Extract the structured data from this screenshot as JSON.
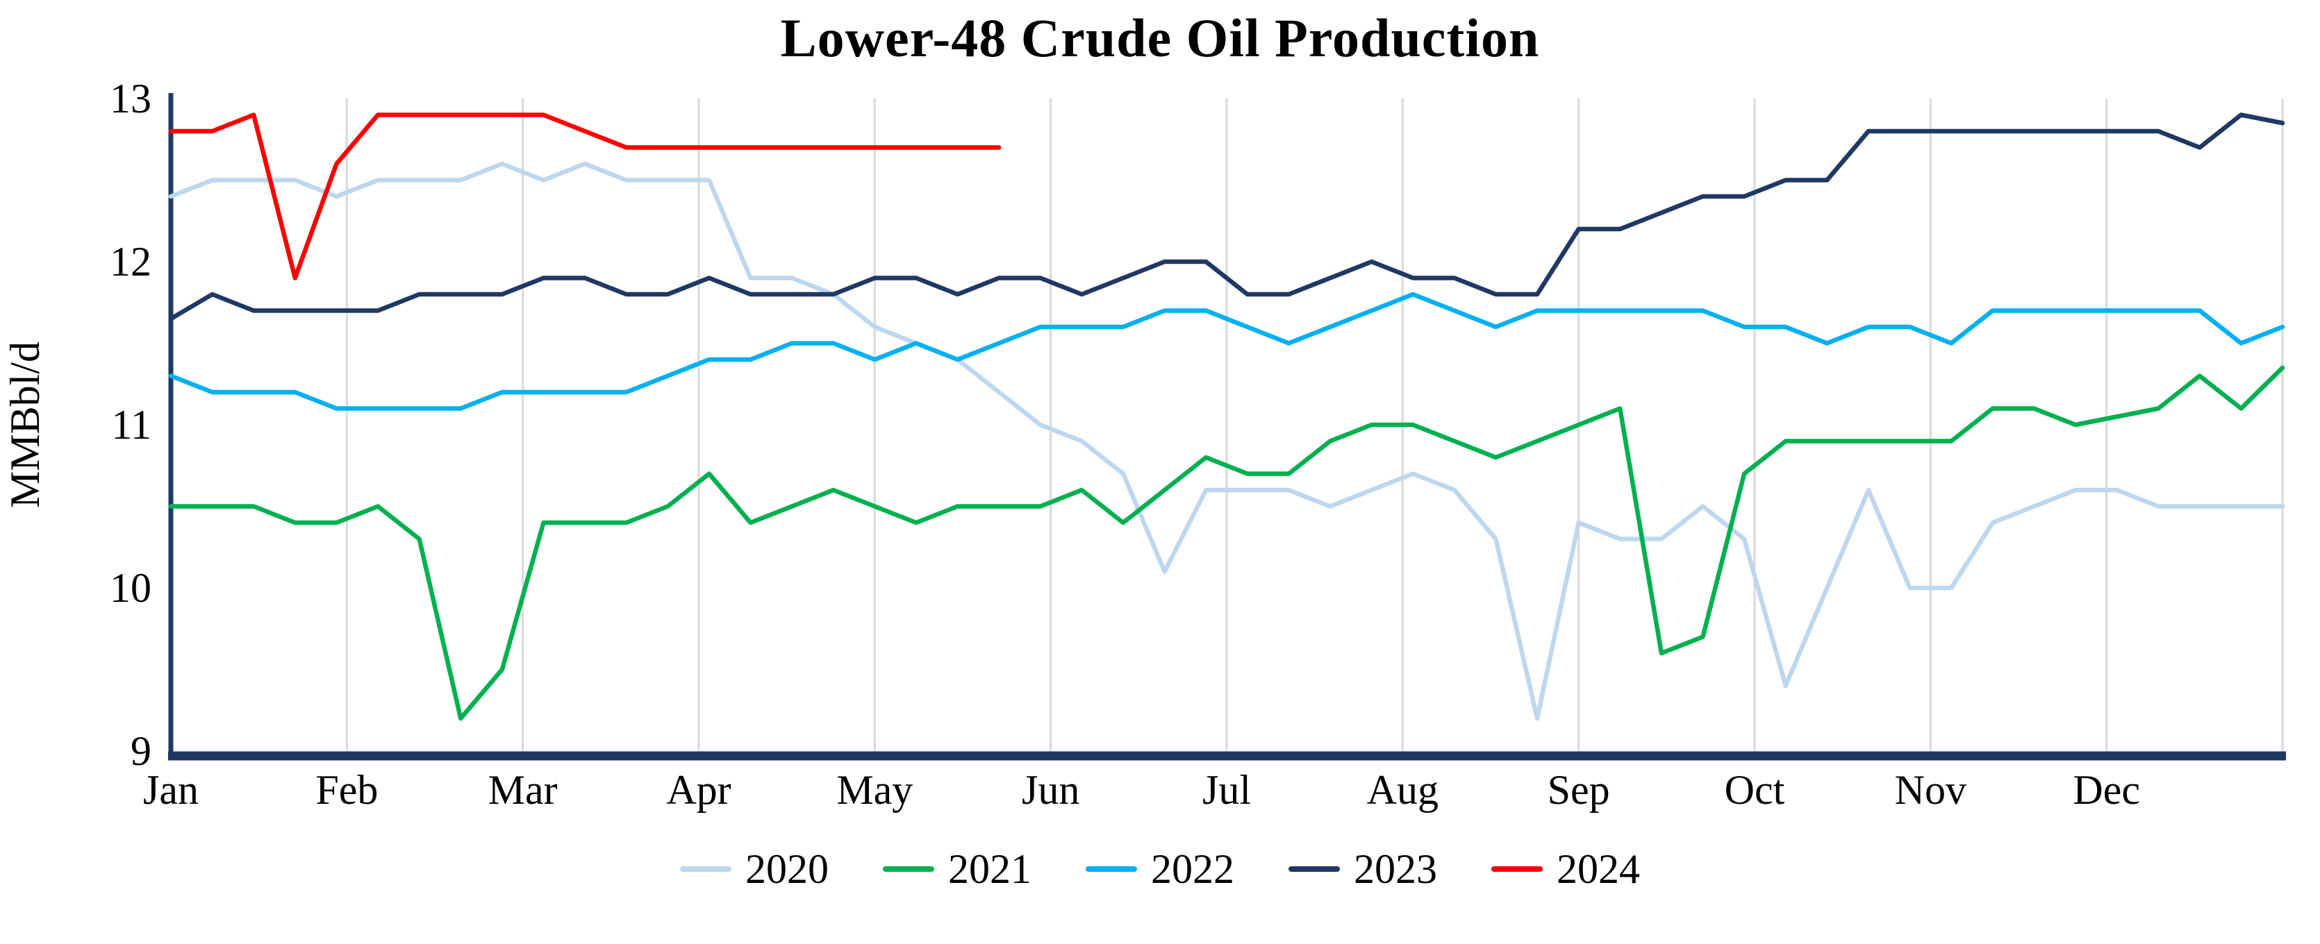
{
  "chart_data": {
    "type": "line",
    "title": "Lower-48 Crude Oil Production",
    "ylabel": "MMBbl/d",
    "xlabel": "",
    "ylim": [
      9,
      13
    ],
    "yticks": [
      9,
      10,
      11,
      12,
      13
    ],
    "x_tick_labels": [
      "Jan",
      "Feb",
      "Mar",
      "Apr",
      "May",
      "Jun",
      "Jul",
      "Aug",
      "Sep",
      "Oct",
      "Nov",
      "Dec"
    ],
    "x_unit": "weekly",
    "grid": "vertical-only",
    "grid_color": "#d9d9d9",
    "axis_color": "#1f3864",
    "legend_position": "bottom",
    "series": [
      {
        "name": "2020",
        "color": "#bdd7ee",
        "values": [
          12.4,
          12.5,
          12.5,
          12.5,
          12.4,
          12.5,
          12.5,
          12.5,
          12.6,
          12.5,
          12.6,
          12.5,
          12.5,
          12.5,
          11.9,
          11.9,
          11.8,
          11.6,
          11.5,
          11.4,
          11.2,
          11.0,
          10.9,
          10.7,
          10.1,
          10.6,
          10.6,
          10.6,
          10.5,
          10.6,
          10.7,
          10.6,
          10.3,
          9.2,
          10.4,
          10.3,
          10.3,
          10.5,
          10.3,
          9.4,
          10.0,
          10.6,
          10.0,
          10.0,
          10.4,
          10.5,
          10.6,
          10.6,
          10.5,
          10.5,
          10.5,
          10.5
        ]
      },
      {
        "name": "2021",
        "color": "#00b050",
        "values": [
          10.5,
          10.5,
          10.5,
          10.4,
          10.4,
          10.5,
          10.3,
          9.2,
          9.5,
          10.4,
          10.4,
          10.4,
          10.5,
          10.7,
          10.4,
          10.5,
          10.6,
          10.5,
          10.4,
          10.5,
          10.5,
          10.5,
          10.6,
          10.4,
          10.6,
          10.8,
          10.7,
          10.7,
          10.9,
          11.0,
          11.0,
          10.9,
          10.8,
          10.9,
          11.0,
          11.1,
          9.6,
          9.7,
          10.7,
          10.9,
          10.9,
          10.9,
          10.9,
          10.9,
          11.1,
          11.1,
          11.0,
          11.05,
          11.1,
          11.3,
          11.1,
          11.35
        ]
      },
      {
        "name": "2022",
        "color": "#00b0f0",
        "values": [
          11.3,
          11.2,
          11.2,
          11.2,
          11.1,
          11.1,
          11.1,
          11.1,
          11.2,
          11.2,
          11.2,
          11.2,
          11.3,
          11.4,
          11.4,
          11.5,
          11.5,
          11.4,
          11.5,
          11.4,
          11.5,
          11.6,
          11.6,
          11.6,
          11.7,
          11.7,
          11.6,
          11.5,
          11.6,
          11.7,
          11.8,
          11.7,
          11.6,
          11.7,
          11.7,
          11.7,
          11.7,
          11.7,
          11.6,
          11.6,
          11.5,
          11.6,
          11.6,
          11.5,
          11.7,
          11.7,
          11.7,
          11.7,
          11.7,
          11.7,
          11.5,
          11.6
        ]
      },
      {
        "name": "2023",
        "color": "#1f3864",
        "values": [
          11.65,
          11.8,
          11.7,
          11.7,
          11.7,
          11.7,
          11.8,
          11.8,
          11.8,
          11.9,
          11.9,
          11.8,
          11.8,
          11.9,
          11.8,
          11.8,
          11.8,
          11.9,
          11.9,
          11.8,
          11.9,
          11.9,
          11.8,
          11.9,
          12.0,
          12.0,
          11.8,
          11.8,
          11.9,
          12.0,
          11.9,
          11.9,
          11.8,
          11.8,
          12.2,
          12.2,
          12.3,
          12.4,
          12.4,
          12.5,
          12.5,
          12.8,
          12.8,
          12.8,
          12.8,
          12.8,
          12.8,
          12.8,
          12.8,
          12.7,
          12.9,
          12.85
        ]
      },
      {
        "name": "2024",
        "color": "#ff0000",
        "values": [
          12.8,
          12.8,
          12.9,
          11.9,
          12.6,
          12.9,
          12.9,
          12.9,
          12.9,
          12.9,
          12.8,
          12.7,
          12.7,
          12.7,
          12.7,
          12.7,
          12.7,
          12.7,
          12.7,
          12.7,
          12.7
        ]
      }
    ]
  }
}
